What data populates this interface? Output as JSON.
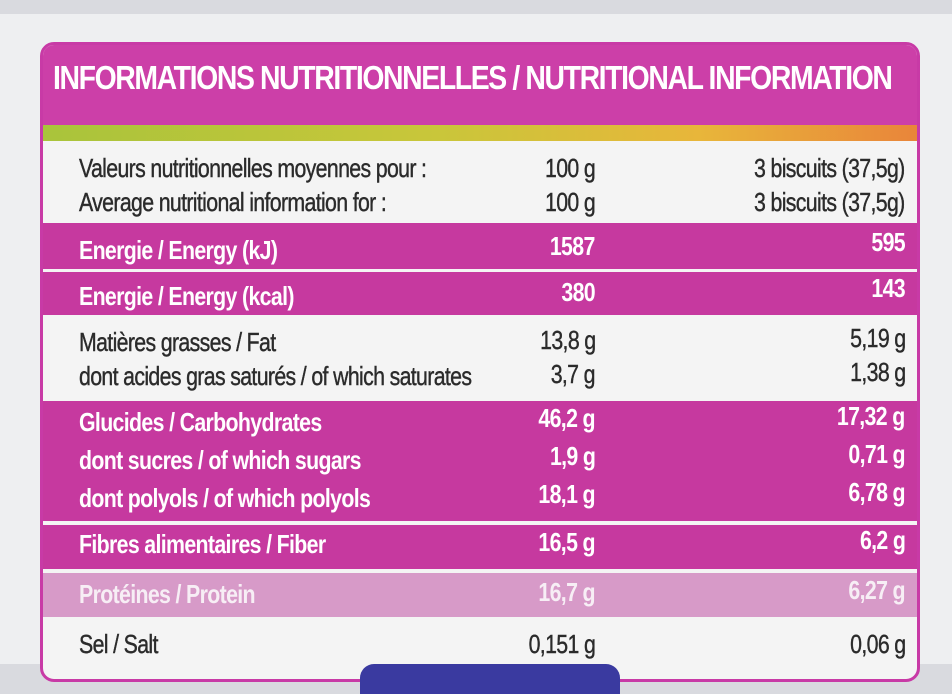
{
  "header": {
    "title": "INFORMATIONS NUTRITIONNELLES / NUTRITIONAL INFORMATION"
  },
  "portion_fr": {
    "label": "Valeurs nutritionnelles moyennes pour :",
    "per100": "100 g",
    "perPortion": "3 biscuits (37,5g)"
  },
  "portion_en": {
    "label": "Average nutritional information for :",
    "per100": "100 g",
    "perPortion": "3 biscuits (37,5g)"
  },
  "energy_kj": {
    "label": "Energie / Energy (kJ)",
    "per100": "1587",
    "perPortion": "595"
  },
  "energy_kcal": {
    "label": "Energie / Energy (kcal)",
    "per100": "380",
    "perPortion": "143"
  },
  "fat": {
    "label": "Matières grasses / Fat",
    "per100": "13,8 g",
    "perPortion": "5,19 g"
  },
  "saturates": {
    "label": "dont acides gras saturés / of which saturates",
    "per100": "3,7 g",
    "perPortion": "1,38 g"
  },
  "carbs": {
    "label": "Glucides / Carbohydrates",
    "per100": "46,2 g",
    "perPortion": "17,32 g"
  },
  "sugars": {
    "label": "dont sucres / of which sugars",
    "per100": "1,9 g",
    "perPortion": "0,71 g"
  },
  "polyols": {
    "label": "dont polyols / of which polyols",
    "per100": "18,1 g",
    "perPortion": "6,78 g"
  },
  "fiber": {
    "label": "Fibres alimentaires / Fiber",
    "per100": "16,5 g",
    "perPortion": "6,2 g"
  },
  "protein": {
    "label": "Protéines / Protein",
    "per100": "16,7 g",
    "perPortion": "6,27 g"
  },
  "salt": {
    "label": "Sel / Salt",
    "per100": "0,151 g",
    "perPortion": "0,06 g"
  },
  "colors": {
    "magenta": "#c6399f",
    "magenta_light": "#d79ac8",
    "panel": "#f4f4f4"
  }
}
